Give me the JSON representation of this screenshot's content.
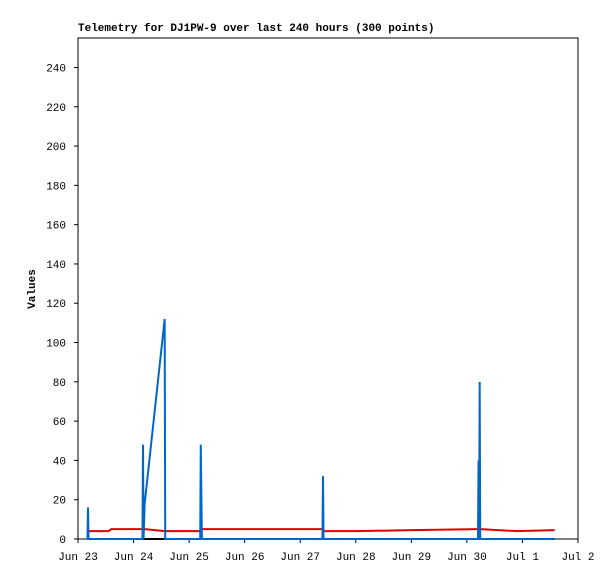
{
  "chart_data": {
    "type": "line",
    "title": "Telemetry for DJ1PW-9 over last 240 hours (300 points)",
    "y_label": "Values",
    "x": [
      0.17,
      0.18,
      0.19,
      0.55,
      0.6,
      1.16,
      1.17,
      1.18,
      1.2,
      1.56,
      1.57,
      2.2,
      2.21,
      2.22,
      2.23,
      3.3,
      4.4,
      4.41,
      4.42,
      5.0,
      6.0,
      7.2,
      7.21,
      7.22,
      7.23,
      7.24,
      7.9,
      8.58
    ],
    "series": [
      {
        "name": "black",
        "color": "#000000",
        "values": [
          0,
          0,
          0,
          0,
          0,
          0,
          0,
          0,
          0,
          0,
          0,
          0,
          0,
          0,
          0,
          0,
          0,
          0,
          0,
          0,
          0,
          0,
          0,
          0,
          0,
          0,
          0,
          0
        ]
      },
      {
        "name": "red",
        "color": "#e00000",
        "values": [
          4,
          4,
          4,
          4,
          5,
          5,
          5,
          5,
          5,
          4,
          4,
          4,
          5,
          5,
          5,
          5,
          5,
          4,
          4,
          4,
          4.5,
          5,
          5,
          5,
          5,
          5,
          4,
          4.5
        ]
      },
      {
        "name": "blue",
        "color": "#0066cc",
        "values": [
          0,
          16,
          0,
          0,
          0,
          0,
          48,
          0,
          18,
          112,
          0,
          0,
          48,
          24,
          0,
          0,
          0,
          32,
          0,
          0,
          0,
          0,
          40,
          0,
          80,
          0,
          0,
          0
        ]
      }
    ],
    "xlim": [
      0,
      9
    ],
    "xticks": [
      {
        "value": 0,
        "label": "Jun 23"
      },
      {
        "value": 1,
        "label": "Jun 24"
      },
      {
        "value": 2,
        "label": "Jun 25"
      },
      {
        "value": 3,
        "label": "Jun 26"
      },
      {
        "value": 4,
        "label": "Jun 27"
      },
      {
        "value": 5,
        "label": "Jun 28"
      },
      {
        "value": 6,
        "label": "Jun 29"
      },
      {
        "value": 7,
        "label": "Jun 30"
      },
      {
        "value": 8,
        "label": "Jul 1"
      },
      {
        "value": 9,
        "label": "Jul 2"
      }
    ],
    "ylim": [
      0,
      255
    ],
    "yticks": [
      0,
      20,
      40,
      60,
      80,
      100,
      120,
      140,
      160,
      180,
      200,
      220,
      240
    ],
    "grid": false
  }
}
